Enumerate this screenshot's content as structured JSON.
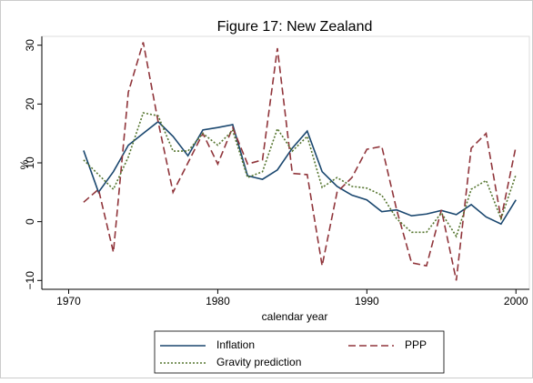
{
  "chart_data": {
    "type": "line",
    "title": "Figure 17: New Zealand",
    "xlabel": "calendar year",
    "ylabel": "%",
    "x": [
      1971,
      1972,
      1973,
      1974,
      1975,
      1976,
      1977,
      1978,
      1979,
      1980,
      1981,
      1982,
      1983,
      1984,
      1985,
      1986,
      1987,
      1988,
      1989,
      1990,
      1991,
      1992,
      1993,
      1994,
      1995,
      1996,
      1997,
      1998,
      1999,
      2000
    ],
    "series": [
      {
        "name": "Inflation",
        "color": "#1a476f",
        "dash": "none",
        "values": [
          12.1,
          5.0,
          8.5,
          13,
          15,
          17,
          14.5,
          11.2,
          15.6,
          16,
          16.5,
          7.8,
          7.2,
          8.8,
          12.5,
          15.4,
          8.5,
          6,
          4.5,
          3.7,
          1.7,
          2.0,
          1.0,
          1.3,
          1.9,
          1.2,
          2.9,
          0.8,
          -0.4,
          3.7
        ]
      },
      {
        "name": "PPP",
        "color": "#90353b",
        "dash": "8,4",
        "values": [
          3.3,
          5.5,
          -5.2,
          22,
          30.5,
          17,
          5.0,
          10,
          15,
          9.8,
          16,
          9.8,
          10.5,
          29.5,
          8.2,
          8.0,
          -7.5,
          5,
          7.5,
          12.3,
          12.8,
          2.0,
          -7,
          -7.5,
          2,
          -10,
          12.5,
          15,
          0.5,
          12.8
        ]
      },
      {
        "name": "Gravity prediction",
        "color": "#55752f",
        "dash": "2,2",
        "values": [
          10.5,
          8,
          5.5,
          11,
          18.5,
          18,
          12,
          12,
          15,
          13,
          15.5,
          7.5,
          8.5,
          15.8,
          12,
          14.5,
          5.8,
          7.5,
          6,
          5.7,
          4.5,
          0.5,
          -1.8,
          -1.8,
          1.5,
          -2.5,
          5.5,
          7,
          0.5,
          8
        ]
      }
    ],
    "xlim": [
      1968.2,
      2000.9
    ],
    "xticks": [
      1970,
      1980,
      1990,
      2000
    ],
    "ylim": [
      -11.5,
      31.5
    ],
    "yticks": [
      {
        "value": -10,
        "label": "−10"
      },
      0,
      10,
      20,
      30
    ]
  }
}
